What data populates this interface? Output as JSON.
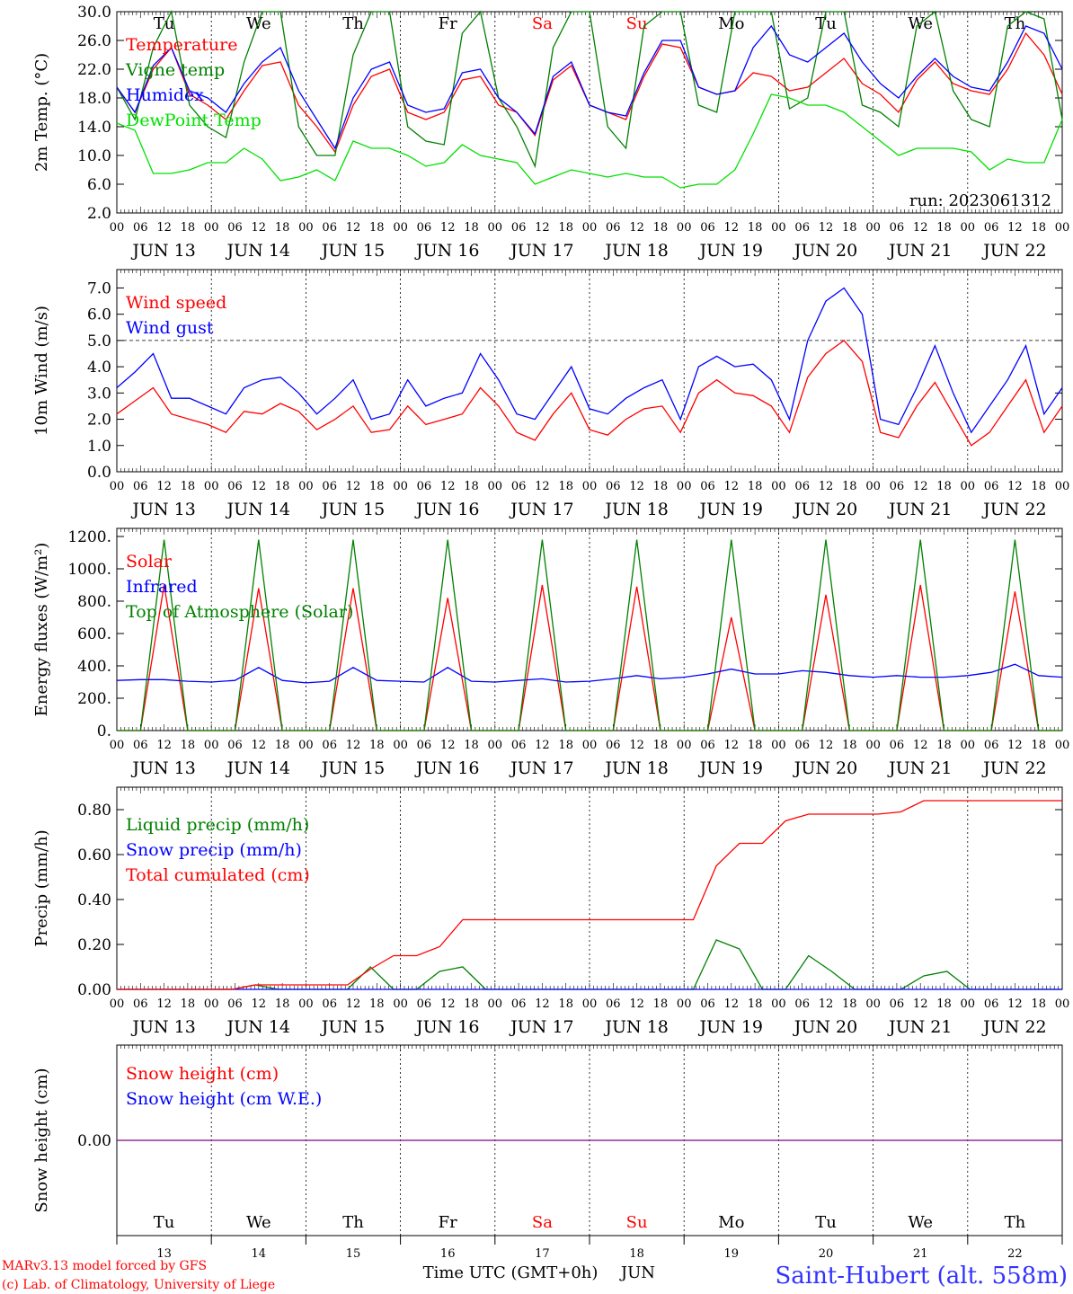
{
  "colors": {
    "red": "#ff0000",
    "green": "#008000",
    "lime": "#00e000",
    "blue": "#0000ff",
    "purple": "#800080",
    "black": "#000000",
    "title_blue": "#3333ff"
  },
  "days": [
    "JUN 13",
    "JUN 14",
    "JUN 15",
    "JUN 16",
    "JUN 17",
    "JUN 18",
    "JUN 19",
    "JUN 20",
    "JUN 21",
    "JUN 22"
  ],
  "weekdays": [
    "Tu",
    "We",
    "Th",
    "Fr",
    "Sa",
    "Su",
    "Mo",
    "Tu",
    "We",
    "Th"
  ],
  "weekend_flags": [
    false,
    false,
    false,
    false,
    true,
    true,
    false,
    false,
    false,
    false
  ],
  "day_numbers": [
    "13",
    "14",
    "15",
    "16",
    "17",
    "18",
    "19",
    "20",
    "21",
    "22"
  ],
  "hour_ticks": [
    "00",
    "06",
    "12",
    "18"
  ],
  "last_hour_tick": "00",
  "run_label": "run: 2023061312",
  "footer": {
    "model_line": "MARv3.13 model forced by GFS",
    "credit_line": "(c) Lab. of Climatology, University of Liege",
    "time_label": "Time UTC (GMT+0h)",
    "month_label": "JUN",
    "station": "Saint-Hubert (alt. 558m)"
  },
  "chart_data": [
    {
      "type": "line",
      "id": "temp",
      "ylabel": "2m Temp. (°C)",
      "ylim": [
        2,
        30
      ],
      "yticks": [
        "2.0",
        "6.0",
        "10.0",
        "14.0",
        "18.0",
        "22.0",
        "26.0",
        "30.0"
      ],
      "legend": [
        {
          "name": "Temperature",
          "color": "#ff0000"
        },
        {
          "name": "Vigne temp",
          "color": "#008000"
        },
        {
          "name": "Humidex",
          "color": "#0000ff"
        },
        {
          "name": "DewPoint Temp",
          "color": "#00e000"
        }
      ],
      "x_hours_step": 6,
      "series": [
        {
          "name": "Temperature",
          "color": "#ff0000",
          "values": [
            19.5,
            16,
            22,
            25,
            18.5,
            17,
            15,
            19,
            22.5,
            23,
            17,
            14,
            10.5,
            17,
            21,
            22,
            16,
            15,
            16,
            20.5,
            21,
            17,
            16,
            12.8,
            20.5,
            22.5,
            17,
            16,
            15,
            21,
            25.5,
            25,
            19.5,
            18.5,
            19,
            21.5,
            21,
            19,
            19.5,
            21.5,
            23.5,
            20,
            18.5,
            16,
            20.5,
            23,
            20,
            19,
            18.5,
            22,
            27,
            24,
            18.5
          ]
        },
        {
          "name": "Vigne temp",
          "color": "#008000",
          "values": [
            19.5,
            15,
            25,
            30,
            17,
            14,
            12.5,
            23,
            30,
            30,
            14,
            10,
            10,
            24,
            30,
            30,
            14,
            12,
            11.5,
            27,
            30,
            18,
            14,
            8.5,
            25,
            30,
            30,
            14,
            11,
            28,
            30,
            30,
            17,
            16,
            30,
            30,
            30,
            16.5,
            18,
            30,
            30,
            17,
            16,
            14,
            28,
            30,
            19,
            15,
            14,
            28,
            30,
            29,
            15
          ]
        },
        {
          "name": "Humidex",
          "color": "#0000ff",
          "values": [
            19.5,
            16,
            22.5,
            25,
            19,
            18,
            16,
            20,
            23,
            25,
            19,
            15,
            11,
            18,
            22,
            23,
            17,
            16,
            16.5,
            21.5,
            22,
            18,
            16,
            13,
            21,
            23,
            17,
            16,
            15.5,
            21.5,
            26,
            26,
            19.5,
            18.5,
            19,
            25,
            28,
            24,
            23,
            25,
            27,
            23,
            20,
            18,
            21,
            23.5,
            21,
            19.5,
            19,
            23,
            28,
            27,
            22
          ]
        },
        {
          "name": "DewPoint Temp",
          "color": "#00e000",
          "values": [
            14.5,
            13.5,
            7.5,
            7.5,
            8,
            9,
            9,
            11,
            9.5,
            6.5,
            7,
            8,
            6.5,
            12,
            11,
            11,
            10,
            8.5,
            9,
            11.5,
            10,
            9.5,
            9,
            6,
            7,
            8,
            7.5,
            7,
            7.5,
            7,
            7,
            5.5,
            6,
            6,
            8,
            13,
            18.5,
            18,
            17,
            17,
            16,
            14,
            12,
            10,
            11,
            11,
            11,
            10.5,
            8,
            9.5,
            9,
            9,
            15
          ]
        }
      ]
    },
    {
      "type": "line",
      "id": "wind",
      "ylabel": "10m Wind (m/s)",
      "ylim": [
        0,
        7.7
      ],
      "yticks": [
        "0.0",
        "1.0",
        "2.0",
        "3.0",
        "4.0",
        "5.0",
        "6.0",
        "7.0"
      ],
      "reference_line": 5.0,
      "legend": [
        {
          "name": "Wind speed",
          "color": "#ff0000"
        },
        {
          "name": "Wind gust",
          "color": "#0000ff"
        }
      ],
      "x_hours_step": 6,
      "series": [
        {
          "name": "Wind speed",
          "color": "#ff0000",
          "values": [
            2.2,
            2.7,
            3.2,
            2.2,
            2.0,
            1.8,
            1.5,
            2.3,
            2.2,
            2.6,
            2.3,
            1.6,
            2.0,
            2.5,
            1.5,
            1.6,
            2.5,
            1.8,
            2.0,
            2.2,
            3.2,
            2.5,
            1.5,
            1.2,
            2.2,
            3.0,
            1.6,
            1.4,
            2.0,
            2.4,
            2.5,
            1.5,
            3.0,
            3.5,
            3.0,
            2.9,
            2.5,
            1.5,
            3.6,
            4.5,
            5.0,
            4.2,
            1.5,
            1.3,
            2.5,
            3.4,
            2.2,
            1.0,
            1.5,
            2.5,
            3.5,
            1.5,
            2.5
          ]
        },
        {
          "name": "Wind gust",
          "color": "#0000ff",
          "values": [
            3.2,
            3.8,
            4.5,
            2.8,
            2.8,
            2.5,
            2.2,
            3.2,
            3.5,
            3.6,
            3.0,
            2.2,
            2.8,
            3.5,
            2.0,
            2.2,
            3.5,
            2.5,
            2.8,
            3.0,
            4.5,
            3.5,
            2.2,
            2.0,
            3.0,
            4.0,
            2.4,
            2.2,
            2.8,
            3.2,
            3.5,
            2.0,
            4.0,
            4.4,
            4.0,
            4.1,
            3.5,
            2.0,
            5.0,
            6.5,
            7.0,
            6.0,
            2.0,
            1.8,
            3.2,
            4.8,
            3.0,
            1.5,
            2.5,
            3.5,
            4.8,
            2.2,
            3.2
          ]
        }
      ]
    },
    {
      "type": "line",
      "id": "energy",
      "ylabel": "Energy fluxes (W/m²)",
      "ylim": [
        0,
        1250
      ],
      "yticks": [
        "0.",
        "200.",
        "400.",
        "600.",
        "800.",
        "1000.",
        "1200."
      ],
      "legend": [
        {
          "name": "Solar",
          "color": "#ff0000"
        },
        {
          "name": "Infrared",
          "color": "#0000ff"
        },
        {
          "name": "Top of Atmosphere (Solar)",
          "color": "#008000"
        }
      ],
      "x_hours_step": 6,
      "series": [
        {
          "name": "Solar",
          "color": "#ff0000",
          "values": [
            0,
            0,
            900,
            0,
            0,
            0,
            880,
            0,
            0,
            0,
            880,
            0,
            0,
            0,
            820,
            0,
            0,
            0,
            900,
            0,
            0,
            0,
            890,
            0,
            0,
            0,
            700,
            0,
            0,
            0,
            840,
            0,
            0,
            0,
            900,
            0,
            0,
            0,
            860,
            0,
            0
          ]
        },
        {
          "name": "Infrared",
          "color": "#0000ff",
          "values": [
            310,
            315,
            315,
            305,
            300,
            310,
            390,
            310,
            295,
            305,
            390,
            310,
            305,
            300,
            390,
            305,
            300,
            310,
            320,
            300,
            305,
            320,
            340,
            320,
            330,
            350,
            380,
            350,
            350,
            370,
            360,
            340,
            330,
            340,
            330,
            330,
            340,
            360,
            410,
            340,
            330
          ]
        },
        {
          "name": "Top of Atmosphere (Solar)",
          "color": "#008000",
          "values": [
            0,
            0,
            1180,
            0,
            0,
            0,
            1180,
            0,
            0,
            0,
            1180,
            0,
            0,
            0,
            1180,
            0,
            0,
            0,
            1180,
            0,
            0,
            0,
            1180,
            0,
            0,
            0,
            1180,
            0,
            0,
            0,
            1180,
            0,
            0,
            0,
            1180,
            0,
            0,
            0,
            1180,
            0,
            0
          ]
        }
      ]
    },
    {
      "type": "line",
      "id": "precip",
      "ylabel": "Precip (mm/h)",
      "ylim": [
        0,
        0.9
      ],
      "yticks": [
        "0.00",
        "0.20",
        "0.40",
        "0.60",
        "0.80"
      ],
      "legend": [
        {
          "name": "Liquid precip (mm/h)",
          "color": "#008000"
        },
        {
          "name": "Snow precip (mm/h)",
          "color": "#0000ff"
        },
        {
          "name": "Total cumulated (cm)",
          "color": "#ff0000"
        }
      ],
      "x_hours_step": 6,
      "series": [
        {
          "name": "Liquid precip (mm/h)",
          "color": "#008000",
          "values": [
            0,
            0,
            0,
            0,
            0,
            0,
            0.02,
            0,
            0,
            0,
            0,
            0.1,
            0,
            0,
            0.08,
            0.1,
            0,
            0,
            0,
            0,
            0,
            0,
            0,
            0,
            0,
            0,
            0.22,
            0.18,
            0,
            0,
            0.15,
            0.08,
            0,
            0,
            0,
            0.06,
            0.08,
            0,
            0,
            0,
            0,
            0
          ]
        },
        {
          "name": "Snow precip (mm/h)",
          "color": "#0000ff",
          "values": [
            0,
            0,
            0,
            0,
            0,
            0,
            0,
            0,
            0,
            0,
            0,
            0,
            0,
            0,
            0,
            0,
            0,
            0,
            0,
            0,
            0,
            0,
            0,
            0,
            0,
            0,
            0,
            0,
            0,
            0,
            0,
            0,
            0,
            0,
            0,
            0,
            0,
            0,
            0,
            0,
            0,
            0
          ]
        },
        {
          "name": "Total cumulated (cm)",
          "color": "#ff0000",
          "values": [
            0,
            0,
            0,
            0,
            0,
            0,
            0.02,
            0.02,
            0.02,
            0.02,
            0.02,
            0.09,
            0.15,
            0.15,
            0.19,
            0.31,
            0.31,
            0.31,
            0.31,
            0.31,
            0.31,
            0.31,
            0.31,
            0.31,
            0.31,
            0.31,
            0.55,
            0.65,
            0.65,
            0.75,
            0.78,
            0.78,
            0.78,
            0.78,
            0.79,
            0.84,
            0.84,
            0.84,
            0.84,
            0.84,
            0.84,
            0.84
          ]
        }
      ]
    },
    {
      "type": "line",
      "id": "snow",
      "ylabel": "Snow height (cm)",
      "ylim": [
        -1,
        1
      ],
      "yticks": [
        "0.00"
      ],
      "legend": [
        {
          "name": "Snow height (cm)",
          "color": "#ff0000"
        },
        {
          "name": "Snow height (cm W.E.)",
          "color": "#0000ff"
        }
      ],
      "x_hours_step": 6,
      "series": [
        {
          "name": "Snow height (cm)",
          "color": "#800080",
          "values": [
            0,
            0,
            0,
            0,
            0,
            0,
            0,
            0,
            0,
            0,
            0,
            0,
            0,
            0,
            0,
            0,
            0,
            0,
            0,
            0,
            0,
            0,
            0,
            0,
            0,
            0,
            0,
            0,
            0,
            0,
            0,
            0,
            0,
            0,
            0,
            0,
            0,
            0,
            0,
            0,
            0
          ]
        }
      ]
    }
  ]
}
